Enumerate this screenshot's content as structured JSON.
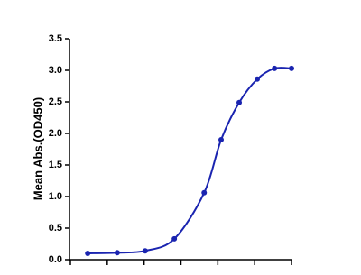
{
  "chart_data": {
    "type": "line",
    "y_label": "Mean Abs.(OD450)",
    "x": [
      0.47,
      1.27,
      2.03,
      2.82,
      3.63,
      4.09,
      4.58,
      5.07,
      5.54,
      6.0
    ],
    "series": [
      {
        "color": "#1a24b0",
        "values": [
          0.1,
          0.11,
          0.14,
          0.33,
          1.06,
          1.9,
          2.49,
          2.86,
          3.03,
          3.03
        ]
      }
    ],
    "xlim": [
      0,
      6
    ],
    "xticks": [
      0,
      1,
      2,
      3,
      4,
      5,
      6
    ],
    "ylim": [
      0,
      3.5
    ],
    "yticks": [
      {
        "value": 0,
        "label": "0.0"
      },
      0.5,
      {
        "value": 1,
        "label": "1.0"
      },
      1.5,
      {
        "value": 2,
        "label": "2.0"
      },
      2.5,
      {
        "value": 3,
        "label": "3.0"
      },
      3.5
    ]
  }
}
